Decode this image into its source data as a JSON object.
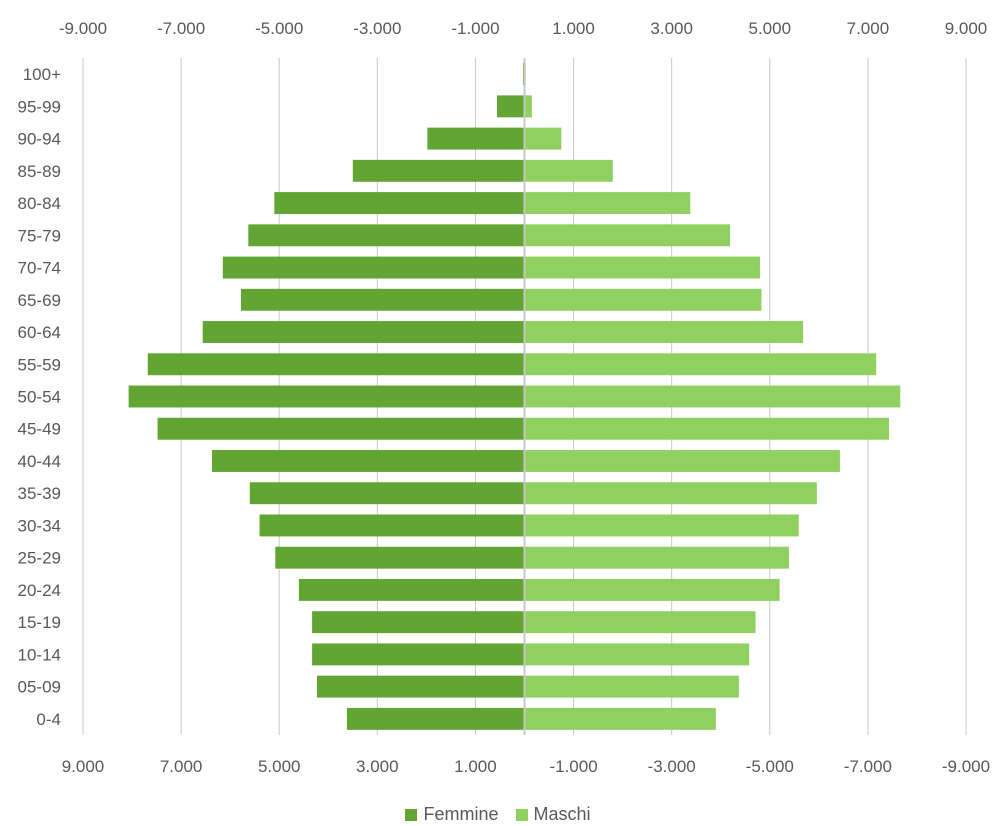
{
  "chart_data": {
    "type": "bar",
    "orientation": "horizontal",
    "categories": [
      "100+",
      "95-99",
      "90-94",
      "85-89",
      "80-84",
      "75-79",
      "70-74",
      "65-69",
      "60-64",
      "55-59",
      "50-54",
      "45-49",
      "40-44",
      "35-39",
      "30-34",
      "25-29",
      "20-24",
      "15-19",
      "10-14",
      "05-09",
      "0-4"
    ],
    "series": [
      {
        "name": "Femmine",
        "color": "#62a532",
        "values": [
          -30,
          -560,
          -1980,
          -3500,
          -5100,
          -5630,
          -6150,
          -5780,
          -6560,
          -7680,
          -8070,
          -7480,
          -6370,
          -5600,
          -5400,
          -5080,
          -4600,
          -4330,
          -4330,
          -4230,
          -3620
        ]
      },
      {
        "name": "Maschi",
        "color": "#8fd061",
        "values": [
          10,
          150,
          750,
          1800,
          3380,
          4190,
          4800,
          4830,
          5680,
          7170,
          7660,
          7430,
          6430,
          5960,
          5590,
          5390,
          5200,
          4710,
          4580,
          4370,
          3900
        ]
      }
    ],
    "xlim": [
      -9000,
      9000
    ],
    "x_ticks_top": [
      "-9.000",
      "-7.000",
      "-5.000",
      "-3.000",
      "-1.000",
      "1.000",
      "3.000",
      "5.000",
      "7.000",
      "9.000"
    ],
    "x_ticks_bottom": [
      "9.000",
      "7.000",
      "5.000",
      "3.000",
      "1.000",
      "-1.000",
      "-3.000",
      "-5.000",
      "-7.000",
      "-9.000"
    ],
    "grid": true,
    "legend_position": "bottom"
  }
}
